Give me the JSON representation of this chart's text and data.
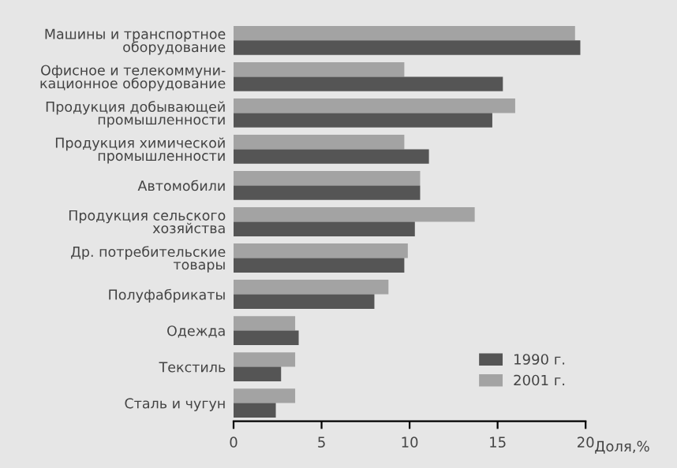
{
  "chart_data": {
    "type": "bar",
    "orientation": "horizontal",
    "xlabel": "Доля,%",
    "categories": [
      "Машины и транспортное\nоборудование",
      "Офисное и телекоммуни-\nкационное оборудование",
      "Продукция добывающей\nпромышленности",
      "Продукция химической\nпромышленности",
      "Автомобили",
      "Продукция сельского\nхозяйства",
      "Др. потребительские\nтовары",
      "Полуфабрикаты",
      "Одежда",
      "Текстиль",
      "Сталь и чугун"
    ],
    "series": [
      {
        "name": "2001 г.",
        "color": "#a3a3a3",
        "values": [
          19.4,
          9.7,
          16.0,
          9.7,
          10.6,
          13.7,
          9.9,
          8.8,
          3.5,
          3.5,
          3.5
        ]
      },
      {
        "name": "1990 г.",
        "color": "#555555",
        "values": [
          19.7,
          15.3,
          14.7,
          11.1,
          10.6,
          10.3,
          9.7,
          8.0,
          3.7,
          2.7,
          2.4
        ]
      }
    ],
    "xlim": [
      0,
      20
    ],
    "xticks": [
      0,
      5,
      10,
      15,
      20
    ],
    "grid": false,
    "legend": "bottom right"
  }
}
